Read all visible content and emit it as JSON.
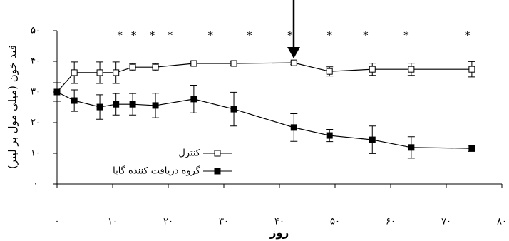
{
  "chart_data": {
    "type": "line",
    "x_label": "روز",
    "y_label": "قند خون (میلی مول بر لیتر)",
    "x": [
      0,
      3.1,
      7.7,
      10.6,
      13.6,
      17.7,
      24.6,
      31.8,
      42.6,
      49,
      56.7,
      63.7,
      74.6
    ],
    "series": [
      {
        "name": "کنترل",
        "color": "#000000",
        "marker": "open",
        "values": [
          30,
          36.3,
          36.3,
          36.3,
          38.1,
          38.1,
          39.3,
          39.3,
          39.5,
          36.7,
          37.4,
          37.4,
          37.4
        ],
        "errors": [
          3,
          3.5,
          3.5,
          3.5,
          1.2,
          1.2,
          0.5,
          0.5,
          0.5,
          1.5,
          2,
          2,
          2.5
        ]
      },
      {
        "name": "گروه دریافت کننده گابا",
        "color": "#000000",
        "marker": "filled",
        "values": [
          30,
          27.2,
          25.1,
          26,
          26,
          25.6,
          27.7,
          24.4,
          18.4,
          15.8,
          14.4,
          11.9,
          11.6
        ],
        "errors": [
          3,
          3.5,
          4,
          3.5,
          3.5,
          4,
          4.5,
          5.5,
          4.5,
          2,
          4.5,
          3.5,
          1
        ]
      }
    ],
    "annotations": [
      {
        "text": "*",
        "x": 11.3
      },
      {
        "text": "*",
        "x": 13.8
      },
      {
        "text": "*",
        "x": 17.1
      },
      {
        "text": "*",
        "x": 20.3
      },
      {
        "text": "*",
        "x": 27.6
      },
      {
        "text": "*",
        "x": 34.6
      },
      {
        "text": "*",
        "x": 41.9
      },
      {
        "text": "*",
        "x": 49
      },
      {
        "text": "*",
        "x": 55.5
      },
      {
        "text": "*",
        "x": 62.8
      },
      {
        "text": "*",
        "x": 73.8
      }
    ],
    "xlim": [
      0,
      80
    ],
    "xticks": [
      {
        "value": 0,
        "label": "۰"
      },
      {
        "value": 10,
        "label": "۱۰"
      },
      {
        "value": 20,
        "label": "۲۰"
      },
      {
        "value": 30,
        "label": "۳۰"
      },
      {
        "value": 40,
        "label": "۴۰"
      },
      {
        "value": 50,
        "label": "۵۰"
      },
      {
        "value": 60,
        "label": "۶۰"
      },
      {
        "value": 70,
        "label": "۷۰"
      },
      {
        "value": 80,
        "label": "۸۰"
      }
    ],
    "ylim": [
      0,
      50
    ],
    "yticks": [
      {
        "value": 0,
        "label": "۰"
      },
      {
        "value": 10,
        "label": "۱۰"
      },
      {
        "value": 20,
        "label": "۲۰"
      },
      {
        "value": 30,
        "label": "۳۰"
      },
      {
        "value": 40,
        "label": "۴۰"
      },
      {
        "value": 50,
        "label": "۵۰"
      }
    ],
    "grid": false
  }
}
